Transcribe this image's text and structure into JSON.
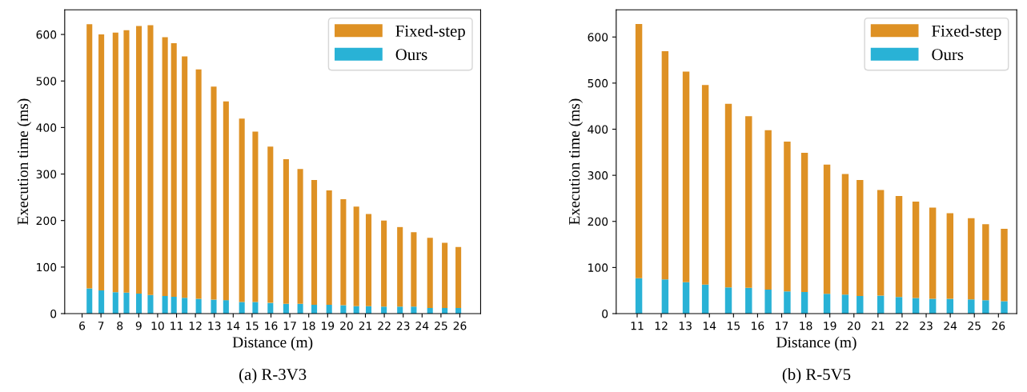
{
  "chart_data": [
    {
      "type": "bar",
      "title": "(a) R-3V3",
      "xlabel": "Distance (m)",
      "ylabel": "Execution time (ms)",
      "stacked": true,
      "legend": "top right",
      "grid": false,
      "x": [
        6.39,
        7.02,
        7.77,
        8.35,
        9.01,
        9.62,
        10.39,
        10.86,
        11.43,
        12.17,
        12.97,
        13.62,
        14.46,
        15.17,
        15.97,
        16.8,
        17.55,
        18.29,
        19.08,
        19.83,
        20.52,
        21.17,
        21.98,
        22.83,
        23.56,
        24.42,
        25.2,
        25.92
      ],
      "series": [
        {
          "name": "Ours",
          "color": "#29b2d6",
          "values": [
            54,
            50,
            46,
            45,
            43,
            40,
            38,
            36,
            34,
            32,
            30,
            29,
            25,
            25,
            23,
            21,
            21,
            19,
            19,
            18,
            16,
            16,
            15,
            15,
            15,
            12,
            12,
            12
          ]
        },
        {
          "name": "Fixed-step",
          "color": "#de9124",
          "values": [
            568,
            550,
            558,
            564,
            575,
            580,
            556,
            545,
            519,
            493,
            458,
            427,
            394,
            366,
            336,
            311,
            290,
            268,
            246,
            228,
            214,
            198,
            185,
            171,
            160,
            151,
            140,
            131
          ]
        }
      ],
      "xlim": [
        5.08,
        27.1
      ],
      "xticks": [
        6,
        7,
        8,
        9,
        10,
        11,
        12,
        13,
        14,
        15,
        16,
        17,
        18,
        19,
        20,
        21,
        22,
        23,
        24,
        25,
        26
      ],
      "ylim": [
        0,
        653
      ],
      "yticks": [
        0,
        100,
        200,
        300,
        400,
        500,
        600
      ]
    },
    {
      "type": "bar",
      "title": "(b) R-5V5",
      "xlabel": "Distance (m)",
      "ylabel": "Execution time (ms)",
      "stacked": true,
      "legend": "top right",
      "grid": false,
      "x": [
        11.07,
        12.16,
        13.03,
        13.83,
        14.79,
        15.63,
        16.44,
        17.23,
        17.95,
        18.88,
        19.64,
        20.25,
        21.11,
        21.87,
        22.57,
        23.27,
        23.99,
        24.87,
        25.47,
        26.24
      ],
      "series": [
        {
          "name": "Ours",
          "color": "#29b2d6",
          "values": [
            77,
            74,
            68,
            63,
            57,
            56,
            52,
            48,
            47,
            43,
            41,
            38,
            39,
            36,
            34,
            32,
            32,
            31,
            29,
            27
          ]
        },
        {
          "name": "Fixed-step",
          "color": "#de9124",
          "values": [
            551,
            495,
            457,
            433,
            398,
            372,
            346,
            325,
            302,
            280,
            262,
            252,
            229,
            219,
            209,
            198,
            186,
            176,
            165,
            157
          ]
        }
      ],
      "xlim": [
        10.13,
        26.76
      ],
      "xticks": [
        11,
        12,
        13,
        14,
        15,
        16,
        17,
        18,
        19,
        20,
        21,
        22,
        23,
        24,
        25,
        26
      ],
      "ylim": [
        0,
        659
      ],
      "yticks": [
        0,
        100,
        200,
        300,
        400,
        500,
        600
      ]
    }
  ]
}
